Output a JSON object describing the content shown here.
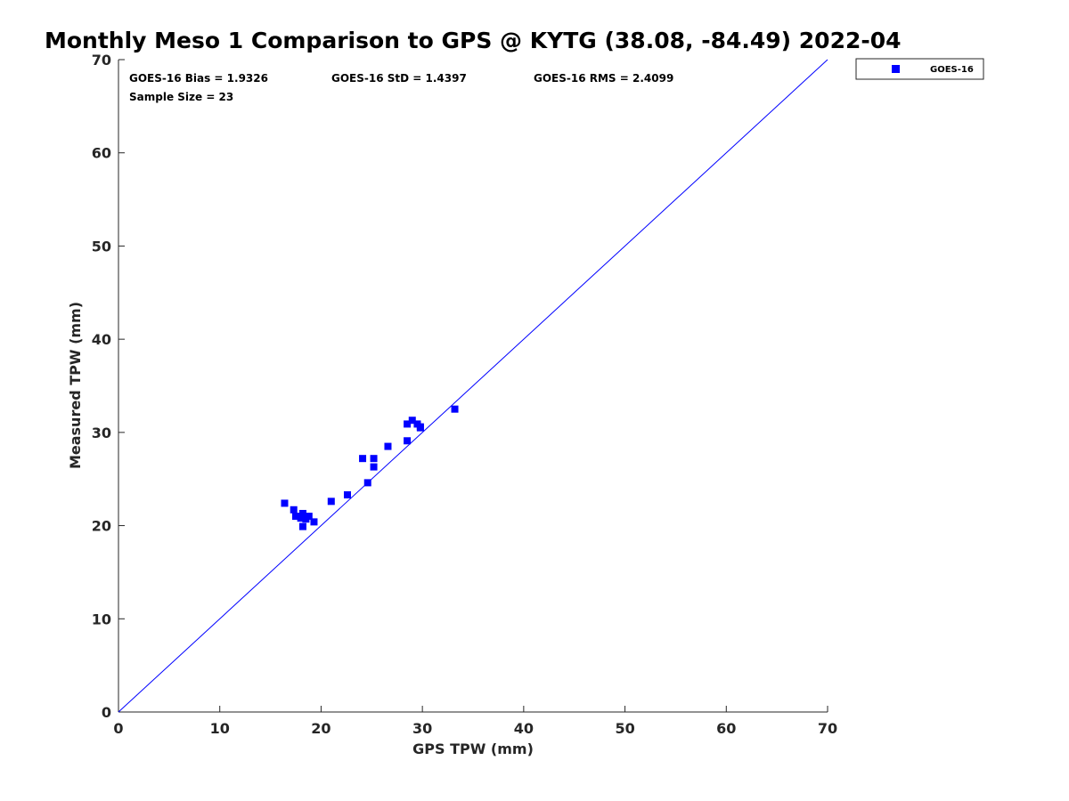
{
  "chart_data": {
    "type": "scatter",
    "title": "Monthly Meso 1 Comparison to GPS @ KYTG (38.08, -84.49) 2022-04",
    "xlabel": "GPS TPW (mm)",
    "ylabel": "Measured TPW (mm)",
    "xlim": [
      0,
      70
    ],
    "ylim": [
      0,
      70
    ],
    "xticks": [
      "0",
      "10",
      "20",
      "30",
      "40",
      "50",
      "60",
      "70"
    ],
    "yticks": [
      "0",
      "10",
      "20",
      "30",
      "40",
      "50",
      "60",
      "70"
    ],
    "grid": false,
    "legend_position": "outside-top-right",
    "reference_line": {
      "from": [
        0,
        0
      ],
      "to": [
        70,
        70
      ],
      "color": "#0000ff"
    },
    "stats": {
      "bias": "GOES-16 Bias = 1.9326",
      "std": "GOES-16 StD = 1.4397",
      "rms": "GOES-16 RMS = 2.4099",
      "sample": "Sample Size = 23"
    },
    "series": [
      {
        "name": "GOES-16",
        "color": "#0000ff",
        "marker": "square",
        "points": [
          [
            16.4,
            22.4
          ],
          [
            17.3,
            21.7
          ],
          [
            17.5,
            21.0
          ],
          [
            18.0,
            20.8
          ],
          [
            18.2,
            21.3
          ],
          [
            18.5,
            20.7
          ],
          [
            18.8,
            21.0
          ],
          [
            18.2,
            19.9
          ],
          [
            19.3,
            20.4
          ],
          [
            21.0,
            22.6
          ],
          [
            22.6,
            23.3
          ],
          [
            24.1,
            27.2
          ],
          [
            24.6,
            24.6
          ],
          [
            25.2,
            27.2
          ],
          [
            25.2,
            26.3
          ],
          [
            26.6,
            28.5
          ],
          [
            28.5,
            30.9
          ],
          [
            28.5,
            29.1
          ],
          [
            29.0,
            31.3
          ],
          [
            29.5,
            30.9
          ],
          [
            29.8,
            30.5
          ],
          [
            33.2,
            32.5
          ],
          [
            29.8,
            30.6
          ]
        ]
      }
    ]
  }
}
